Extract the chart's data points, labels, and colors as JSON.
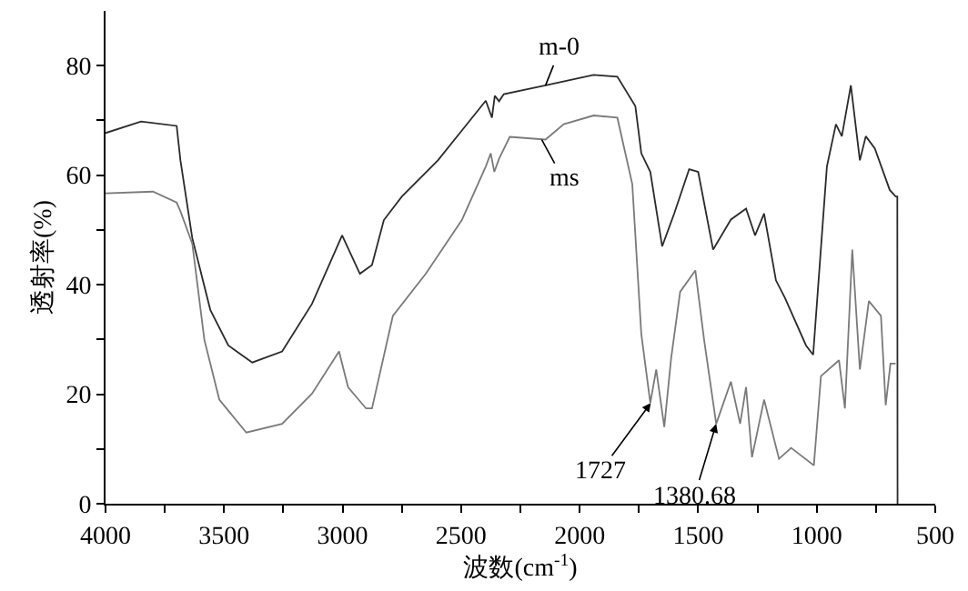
{
  "chart_data": {
    "type": "line",
    "xlabel": "波数(cm$^{-1}$)",
    "ylabel": "透射率(%)",
    "xlim": [
      4000,
      500
    ],
    "xticks": [
      4000,
      {
        "value": 3750,
        "label": null
      },
      3500,
      {
        "value": 3250,
        "label": null
      },
      3000,
      {
        "value": 2750,
        "label": null
      },
      2500,
      {
        "value": 2250,
        "label": null
      },
      2000,
      {
        "value": 1750,
        "label": null
      },
      1500,
      {
        "value": 1250,
        "label": null
      },
      1000,
      {
        "value": 750,
        "label": null
      },
      500
    ],
    "ylim": [
      0,
      90
    ],
    "yticks": [
      0,
      {
        "value": 10,
        "label": null
      },
      20,
      {
        "value": 30,
        "label": null
      },
      40,
      {
        "value": 50,
        "label": null
      },
      60,
      {
        "value": 70,
        "label": null
      },
      80
    ],
    "marker": "none",
    "line_style": "solid",
    "series": [
      {
        "color": "#2a2a2a",
        "x": [
          4000,
          3850,
          3700,
          3684,
          3634,
          3558,
          3482,
          3381,
          3255,
          3129,
          3002,
          2927,
          2876,
          2826,
          2750,
          2598,
          2396,
          2370,
          2358,
          2340,
          2320,
          2144,
          1941,
          1841,
          1765,
          1740,
          1702,
          1652,
          1601,
          1538,
          1500,
          1437,
          1362,
          1298,
          1260,
          1222,
          1172,
          1134,
          1045,
          1015,
          957,
          919,
          894,
          856,
          818,
          793,
          755,
          692,
          667,
          660,
          659
        ],
        "values": [
          67.7,
          69.8,
          69,
          62.7,
          48.5,
          35.4,
          28.9,
          25.8,
          27.8,
          36.5,
          49,
          42,
          43.6,
          51.8,
          56.1,
          62.7,
          73.6,
          70.5,
          74.5,
          73.5,
          74.8,
          76.4,
          78.3,
          78,
          72.6,
          64,
          60.6,
          47,
          53,
          61.1,
          60.6,
          46.4,
          51.9,
          53.9,
          49,
          53,
          40.8,
          37.6,
          28.9,
          27.2,
          61.6,
          69.3,
          67.1,
          76.4,
          62.7,
          67.1,
          64.9,
          57.3,
          56.1,
          56.1,
          0
        ]
      },
      {
        "color": "#7a7a7a",
        "x": [
          4000,
          3800,
          3700,
          3684,
          3634,
          3583,
          3520,
          3406,
          3255,
          3129,
          3015,
          2977,
          2901,
          2876,
          2788,
          2649,
          2497,
          2396,
          2375,
          2360,
          2340,
          2295,
          2144,
          2067,
          1941,
          1841,
          1778,
          1740,
          1702,
          1677,
          1643,
          1614,
          1576,
          1512,
          1475,
          1424,
          1362,
          1323,
          1298,
          1273,
          1222,
          1159,
          1108,
          1012,
          982,
          906,
          881,
          850,
          818,
          780,
          729,
          709,
          689,
          667
        ],
        "values": [
          56.7,
          57,
          55,
          53.4,
          47.5,
          29.9,
          19,
          13,
          14.6,
          20.1,
          27.8,
          21.3,
          17.4,
          17.4,
          34.3,
          42,
          51.8,
          61.6,
          64,
          60.6,
          63,
          67,
          66.5,
          69.3,
          70.9,
          70.5,
          58.4,
          31,
          18.4,
          24.5,
          14,
          26.6,
          38.7,
          42.6,
          29.9,
          14.6,
          22.3,
          14.6,
          21.3,
          8.5,
          19,
          8.2,
          10.2,
          7,
          23.3,
          26.2,
          17.4,
          46.4,
          24.5,
          37,
          34.3,
          18,
          25.6,
          25.6
        ]
      }
    ],
    "annotations": [
      {
        "text": "m-0",
        "x": 2144,
        "y": 76.4
      },
      {
        "text": "ms",
        "x": 2160,
        "y": 66.5
      },
      {
        "text": "1727",
        "x": 1700,
        "y": 18.4
      },
      {
        "text": "1380.68",
        "x": 1424,
        "y": 14.6
      }
    ]
  }
}
